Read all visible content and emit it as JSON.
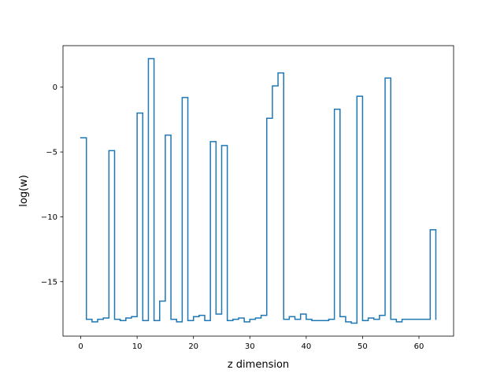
{
  "chart_data": {
    "type": "line",
    "drawstyle": "steps-post",
    "title": "",
    "xlabel": "z dimension",
    "ylabel": "log(w)",
    "xlim": [
      -3.15,
      66.15
    ],
    "ylim": [
      -19.2,
      3.2
    ],
    "xticks": [
      0,
      10,
      20,
      30,
      40,
      50,
      60
    ],
    "xtick_labels": [
      "0",
      "10",
      "20",
      "30",
      "40",
      "50",
      "60"
    ],
    "yticks": [
      0,
      -5,
      -10,
      -15
    ],
    "ytick_labels": [
      "0",
      "−5",
      "−10",
      "−15"
    ],
    "grid": false,
    "legend": "none",
    "line_color": "#1f77b4",
    "series": [
      {
        "x": [
          0,
          1,
          2,
          3,
          4,
          5,
          6,
          7,
          8,
          9,
          10,
          11,
          12,
          13,
          14,
          15,
          16,
          17,
          18,
          19,
          20,
          21,
          22,
          23,
          24,
          25,
          26,
          27,
          28,
          29,
          30,
          31,
          32,
          33,
          34,
          35,
          36,
          37,
          38,
          39,
          40,
          41,
          42,
          43,
          44,
          45,
          46,
          47,
          48,
          49,
          50,
          51,
          52,
          53,
          54,
          55,
          56,
          57,
          58,
          59,
          60,
          61,
          62,
          63
        ],
        "values": [
          -3.9,
          -17.9,
          -18.1,
          -17.9,
          -17.8,
          -4.9,
          -17.9,
          -18.0,
          -17.8,
          -17.7,
          -2.0,
          -18.0,
          2.2,
          -18.0,
          -16.5,
          -3.7,
          -17.9,
          -18.1,
          -0.8,
          -18.0,
          -17.7,
          -17.6,
          -18.0,
          -4.2,
          -17.5,
          -4.5,
          -18.0,
          -17.9,
          -17.8,
          -18.1,
          -17.9,
          -17.8,
          -17.6,
          -2.4,
          0.1,
          1.1,
          -17.9,
          -17.7,
          -17.9,
          -17.5,
          -17.9,
          -18.0,
          -18.0,
          -18.0,
          -17.9,
          -1.7,
          -17.7,
          -18.1,
          -18.2,
          -0.7,
          -18.0,
          -17.8,
          -17.9,
          -17.6,
          0.7,
          -17.9,
          -18.1,
          -17.9,
          -17.9,
          -17.9,
          -17.9,
          -17.9,
          -11.0,
          -17.9
        ]
      }
    ]
  }
}
